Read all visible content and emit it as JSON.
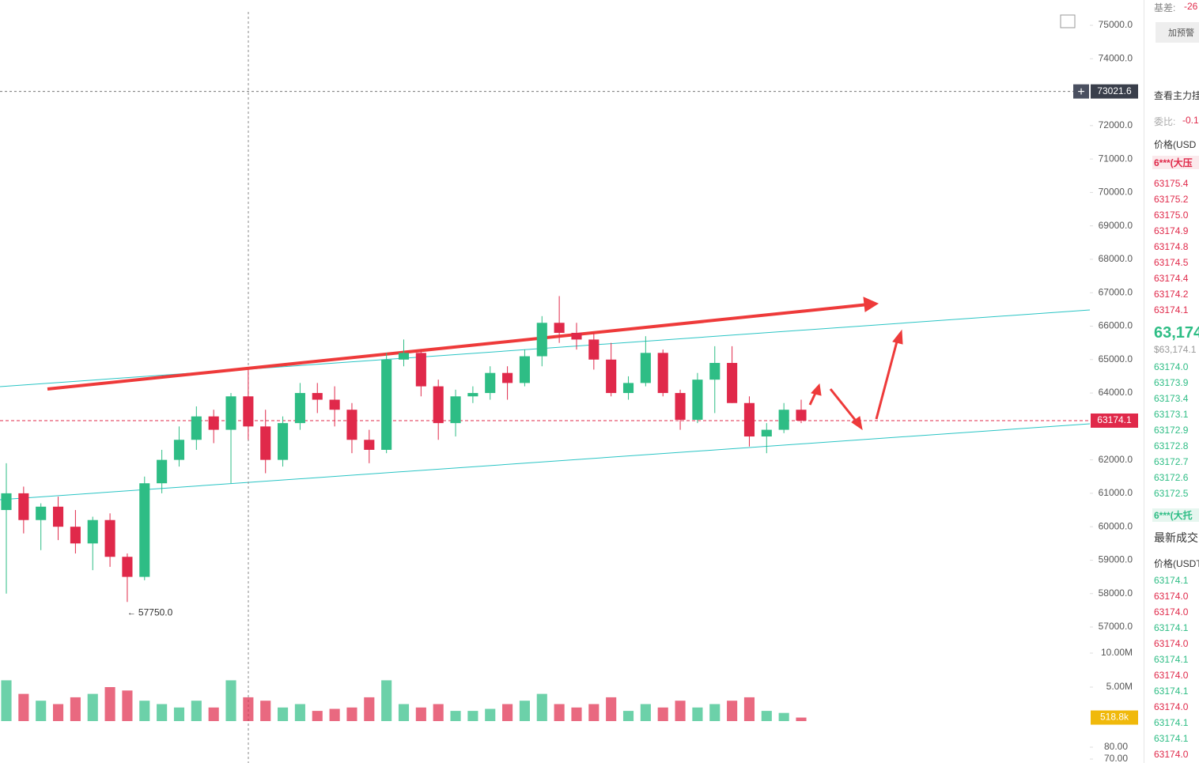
{
  "chart_data": {
    "type": "candlestick",
    "ohlc": [
      [
        60500,
        61900,
        58000,
        61000
      ],
      [
        61000,
        61200,
        59800,
        60200
      ],
      [
        60200,
        60700,
        59300,
        60600
      ],
      [
        60600,
        60900,
        59600,
        60000
      ],
      [
        60000,
        60500,
        59200,
        59500
      ],
      [
        59500,
        60300,
        58700,
        60200
      ],
      [
        60200,
        60400,
        58800,
        59100
      ],
      [
        59100,
        59200,
        57750,
        58500
      ],
      [
        58500,
        61500,
        58400,
        61300
      ],
      [
        61300,
        62300,
        61000,
        62000
      ],
      [
        62000,
        63000,
        61800,
        62600
      ],
      [
        62600,
        63600,
        62300,
        63300
      ],
      [
        63300,
        63500,
        62500,
        62900
      ],
      [
        62900,
        64000,
        61300,
        63900
      ],
      [
        63900,
        64700,
        62600,
        63000
      ],
      [
        63000,
        63500,
        61600,
        62000
      ],
      [
        62000,
        63300,
        61800,
        63100
      ],
      [
        63100,
        64300,
        62900,
        64000
      ],
      [
        64000,
        64300,
        63400,
        63800
      ],
      [
        63800,
        64200,
        63000,
        63500
      ],
      [
        63500,
        63700,
        62200,
        62600
      ],
      [
        62600,
        62900,
        61900,
        62300
      ],
      [
        62300,
        65200,
        62200,
        65000
      ],
      [
        65000,
        65600,
        64800,
        65200
      ],
      [
        65200,
        65300,
        63900,
        64200
      ],
      [
        64200,
        64400,
        62600,
        63100
      ],
      [
        63100,
        64100,
        62700,
        63900
      ],
      [
        63900,
        64200,
        63700,
        64000
      ],
      [
        64000,
        64800,
        63800,
        64600
      ],
      [
        64600,
        64800,
        63800,
        64300
      ],
      [
        64300,
        65300,
        64200,
        65100
      ],
      [
        65100,
        66300,
        64800,
        66100
      ],
      [
        66100,
        66900,
        65500,
        65800
      ],
      [
        65800,
        66100,
        65300,
        65600
      ],
      [
        65600,
        65800,
        64700,
        65000
      ],
      [
        65000,
        65500,
        63900,
        64000
      ],
      [
        64000,
        64500,
        63800,
        64300
      ],
      [
        64300,
        65700,
        64200,
        65200
      ],
      [
        65200,
        65300,
        63900,
        64000
      ],
      [
        64000,
        64100,
        62900,
        63200
      ],
      [
        63200,
        64600,
        63100,
        64400
      ],
      [
        64400,
        65400,
        63400,
        64900
      ],
      [
        64900,
        65400,
        63700,
        63700
      ],
      [
        63700,
        63900,
        62400,
        62700
      ],
      [
        62700,
        63100,
        62200,
        62900
      ],
      [
        62900,
        63700,
        62800,
        63500
      ],
      [
        63500,
        63800,
        63100,
        63174.1
      ]
    ],
    "volume": [
      6000000,
      4000000,
      3000000,
      2500000,
      3500000,
      4000000,
      5000000,
      4500000,
      3000000,
      2500000,
      2000000,
      3000000,
      2000000,
      6000000,
      3500000,
      3000000,
      2000000,
      2500000,
      1500000,
      1800000,
      2000000,
      3500000,
      6000000,
      2500000,
      2000000,
      2500000,
      1500000,
      1500000,
      1800000,
      2500000,
      3000000,
      4000000,
      2500000,
      2000000,
      2500000,
      3500000,
      1500000,
      2500000,
      2000000,
      3000000,
      2000000,
      2500000,
      3000000,
      3500000,
      1500000,
      1200000,
      518800
    ],
    "volume_labels": {
      "46": "518.8k"
    },
    "up_color": "#2ebd85",
    "down_color": "#e0294a",
    "ylim": [
      56000,
      75750
    ],
    "yticks": [
      {
        "value": 75000,
        "label": "75000.0"
      },
      {
        "value": 74000,
        "label": "74000.0"
      },
      {
        "value": 72000,
        "label": "72000.0"
      },
      {
        "value": 71000,
        "label": "71000.0"
      },
      {
        "value": 70000,
        "label": "70000.0"
      },
      {
        "value": 69000,
        "label": "69000.0"
      },
      {
        "value": 68000,
        "label": "68000.0"
      },
      {
        "value": 67000,
        "label": "67000.0"
      },
      {
        "value": 66000,
        "label": "66000.0"
      },
      {
        "value": 65000,
        "label": "65000.0"
      },
      {
        "value": 64000,
        "label": "64000.0"
      },
      {
        "value": 62000,
        "label": "62000.0"
      },
      {
        "value": 61000,
        "label": "61000.0"
      },
      {
        "value": 60000,
        "label": "60000.0"
      },
      {
        "value": 59000,
        "label": "59000.0"
      },
      {
        "value": 58000,
        "label": "58000.0"
      },
      {
        "value": 57000,
        "label": "57000.0"
      }
    ],
    "crosshair_price": 73021.6,
    "last_price": 63174.1,
    "low_marker": {
      "value": 57750,
      "label": "57750.0"
    },
    "volume_ylim": [
      0,
      10000000
    ],
    "volume_yticks": [
      {
        "value": 10000000,
        "label": "10.00M"
      },
      {
        "value": 5000000,
        "label": "5.00M"
      }
    ],
    "oscillator_ylim": [
      66,
      90
    ],
    "oscillator_yticks": [
      {
        "value": 80,
        "label": "80.00"
      },
      {
        "value": 70,
        "label": "70.00"
      }
    ]
  },
  "panel": {
    "basis_label": "基差:",
    "basis_value": "-26",
    "alert_button": "加预警",
    "view_main": "查看主力挂",
    "ratio_label": "委比:",
    "ratio_value": "-0.1",
    "price_header": "价格(USD",
    "ask_wall": "6***(大压",
    "asks": [
      "63175.4",
      "63175.2",
      "63175.0",
      "63174.9",
      "63174.8",
      "63174.5",
      "63174.4",
      "63174.2",
      "63174.1"
    ],
    "last_big": "63,174",
    "last_usd": "$63,174.1",
    "bids": [
      "63174.0",
      "63173.9",
      "63173.4",
      "63173.1",
      "63172.9",
      "63172.8",
      "63172.7",
      "63172.6",
      "63172.5"
    ],
    "bid_wall": "6***(大托",
    "trades_title": "最新成交",
    "trades_header": "价格(USDT",
    "trades": [
      {
        "price": "63174.1",
        "color": "#2ebd85"
      },
      {
        "price": "63174.0",
        "color": "#e0294a"
      },
      {
        "price": "63174.0",
        "color": "#e0294a"
      },
      {
        "price": "63174.1",
        "color": "#2ebd85"
      },
      {
        "price": "63174.0",
        "color": "#e0294a"
      },
      {
        "price": "63174.1",
        "color": "#2ebd85"
      },
      {
        "price": "63174.0",
        "color": "#e0294a"
      },
      {
        "price": "63174.1",
        "color": "#2ebd85"
      },
      {
        "price": "63174.0",
        "color": "#e0294a"
      },
      {
        "price": "63174.1",
        "color": "#2ebd85"
      },
      {
        "price": "63174.1",
        "color": "#2ebd85"
      },
      {
        "price": "63174.0",
        "color": "#e0294a"
      }
    ]
  }
}
